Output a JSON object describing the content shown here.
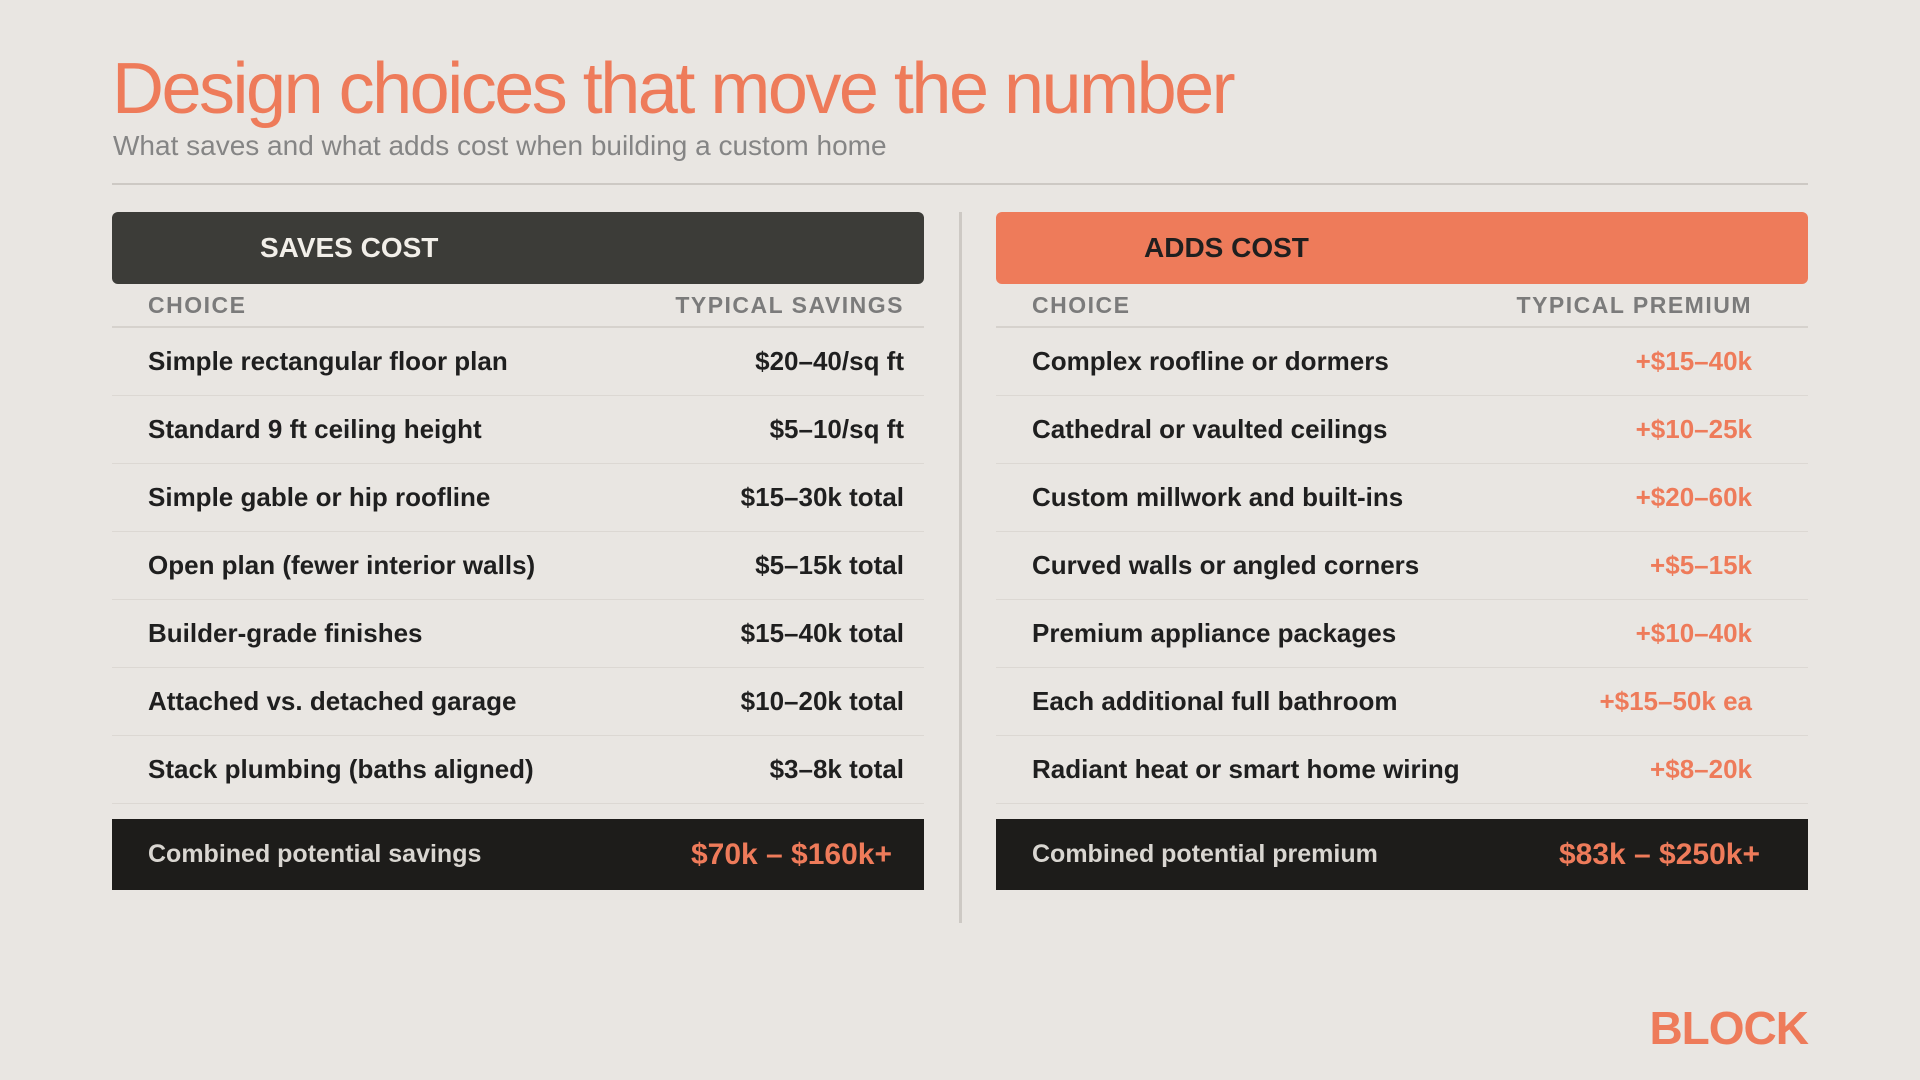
{
  "title": "Design choices that move the number",
  "subtitle": "What saves and what adds cost when building a custom home",
  "saves": {
    "header": "SAVES COST",
    "col_choice": "CHOICE",
    "col_value": "TYPICAL SAVINGS",
    "rows": [
      {
        "choice": "Simple rectangular floor plan",
        "value": "$20–40/sq ft"
      },
      {
        "choice": "Standard 9 ft ceiling height",
        "value": "$5–10/sq ft"
      },
      {
        "choice": "Simple gable or hip roofline",
        "value": "$15–30k total"
      },
      {
        "choice": "Open plan (fewer interior walls)",
        "value": "$5–15k total"
      },
      {
        "choice": "Builder-grade finishes",
        "value": "$15–40k total"
      },
      {
        "choice": "Attached vs. detached garage",
        "value": "$10–20k total"
      },
      {
        "choice": "Stack plumbing (baths aligned)",
        "value": "$3–8k total"
      }
    ],
    "total_label": "Combined potential savings",
    "total_value": "$70k – $160k+"
  },
  "adds": {
    "header": "ADDS COST",
    "col_choice": "CHOICE",
    "col_value": "TYPICAL PREMIUM",
    "rows": [
      {
        "choice": "Complex roofline or dormers",
        "value": "+$15–40k"
      },
      {
        "choice": "Cathedral or vaulted ceilings",
        "value": "+$10–25k"
      },
      {
        "choice": "Custom millwork and built-ins",
        "value": "+$20–60k"
      },
      {
        "choice": "Curved walls or angled corners",
        "value": "+$5–15k"
      },
      {
        "choice": "Premium appliance packages",
        "value": "+$10–40k"
      },
      {
        "choice": "Each additional full bathroom",
        "value": "+$15–50k ea"
      },
      {
        "choice": "Radiant heat or smart home wiring",
        "value": "+$8–20k"
      }
    ],
    "total_label": "Combined potential premium",
    "total_value": "$83k – $250k+"
  },
  "brand": "BLOCK",
  "colors": {
    "accent": "#ee7b5a",
    "dark_header": "#3c3c38",
    "total_bar": "#1d1c1a",
    "background": "#e9e6e2"
  }
}
